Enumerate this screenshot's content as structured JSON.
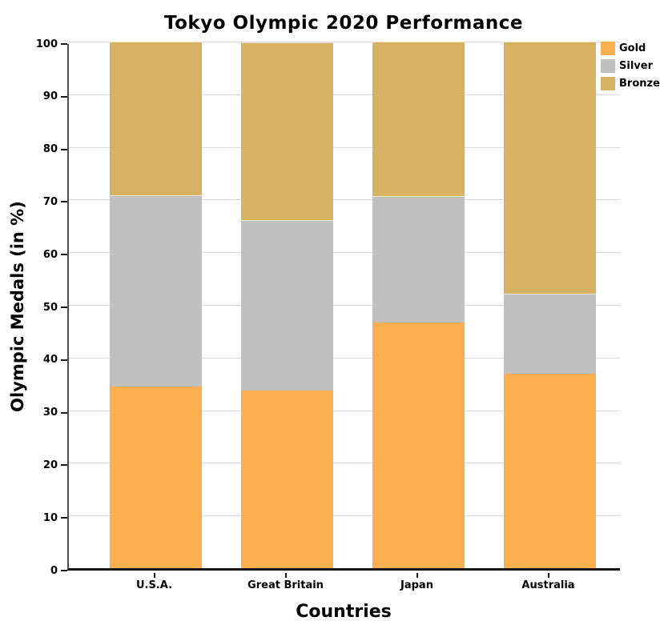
{
  "chart_data": {
    "type": "bar",
    "stacked": true,
    "title": "Tokyo Olympic 2020 Performance",
    "xlabel": "Countries",
    "ylabel": "Olympic Medals (in %)",
    "categories": [
      "U.S.A.",
      "Great Britain",
      "Japan",
      "Australia"
    ],
    "series": [
      {
        "name": "Gold",
        "color": "#FCAF4E",
        "values": [
          34.5,
          33.8,
          46.6,
          37.0
        ]
      },
      {
        "name": "Silver",
        "color": "#C0C0C0",
        "values": [
          36.3,
          32.3,
          24.1,
          15.2
        ]
      },
      {
        "name": "Bronze",
        "color": "#D7B262",
        "values": [
          29.2,
          33.8,
          29.3,
          47.8
        ]
      }
    ],
    "ylim": [
      0,
      100
    ],
    "yticks": [
      0,
      10,
      20,
      30,
      40,
      50,
      60,
      70,
      80,
      90,
      100
    ],
    "grid": true,
    "grid_color": "#d9d9d9",
    "legend_position": "upper right",
    "legend_labels": [
      "Gold",
      "Silver",
      "Bronze"
    ]
  }
}
